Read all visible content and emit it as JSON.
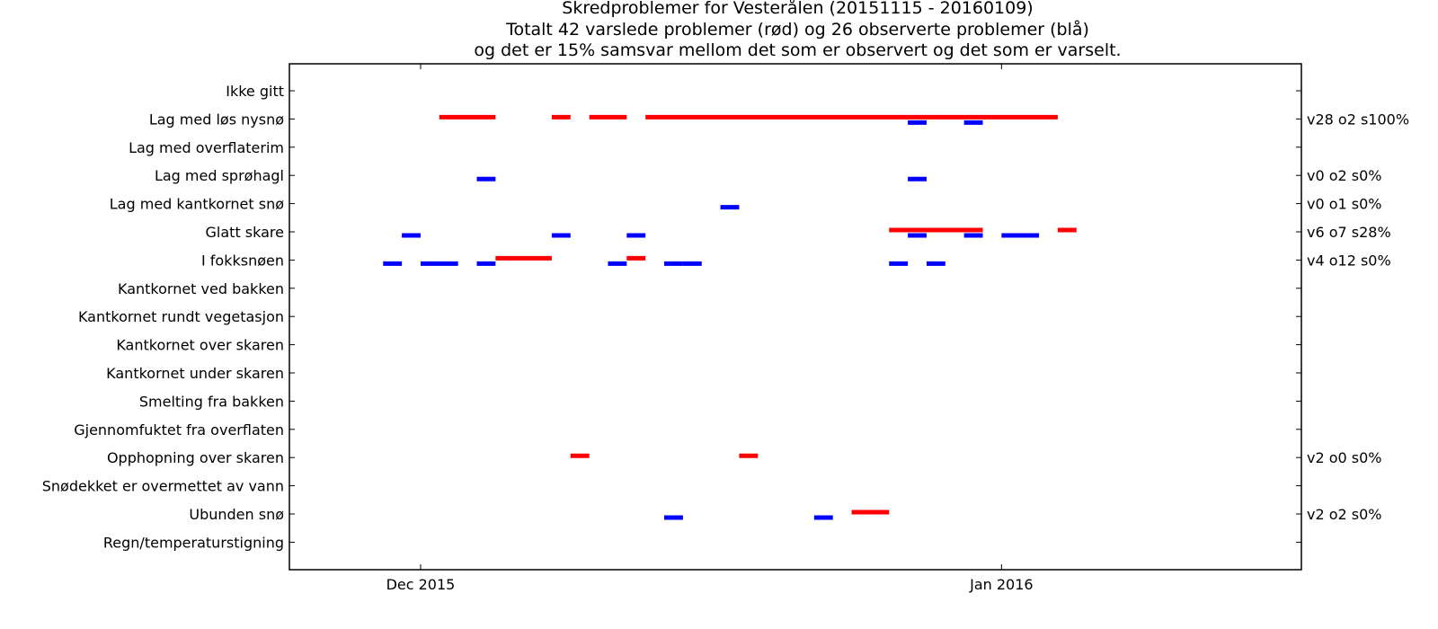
{
  "chart_data": {
    "type": "timeline",
    "title_lines": [
      "Skredproblemer for Vesterålen (20151115 - 20160109)",
      "Totalt 42 varslede problemer (rød) og 26 observerte problemer (blå)",
      "og det er 15% samsvar mellom det som er observert og det som er varselt."
    ],
    "x_range": [
      "2015-11-24",
      "2016-01-17"
    ],
    "x_ticks": [
      {
        "date": "2015-12-01",
        "label": "Dec 2015"
      },
      {
        "date": "2016-01-01",
        "label": "Jan 2016"
      }
    ],
    "categories": [
      "Ikke gitt",
      "Lag med løs nysnø",
      "Lag med overflaterim",
      "Lag med sprøhagl",
      "Lag med kantkornet snø",
      "Glatt skare",
      "I fokksnøen",
      "Kantkornet ved bakken",
      "Kantkornet rundt vegetasjon",
      "Kantkornet over skaren",
      "Kantkornet under skaren",
      "Smelting fra bakken",
      "Gjennomfuktet fra overflaten",
      "Opphopning over skaren",
      "Snødekket er overmettet av vann",
      "Ubunden snø",
      "Regn/temperaturstigning"
    ],
    "right_labels": [
      "",
      "v28 o2 s100%",
      "",
      "v0 o2 s0%",
      "v0 o1 s0%",
      "v6 o7 s28%",
      "v4 o12 s0%",
      "",
      "",
      "",
      "",
      "",
      "",
      "v2 o0 s0%",
      "",
      "v2 o2 s0%",
      ""
    ],
    "series": [
      {
        "color": "#ff0000",
        "segments": [
          {
            "row": 1,
            "start": "2015-12-02",
            "end": "2015-12-05"
          },
          {
            "row": 1,
            "start": "2015-12-08",
            "end": "2015-12-09"
          },
          {
            "row": 1,
            "start": "2015-12-10",
            "end": "2015-12-12"
          },
          {
            "row": 1,
            "start": "2015-12-13",
            "end": "2016-01-04"
          },
          {
            "row": 5,
            "start": "2015-12-26",
            "end": "2015-12-31"
          },
          {
            "row": 5,
            "start": "2016-01-04",
            "end": "2016-01-05"
          },
          {
            "row": 6,
            "start": "2015-12-05",
            "end": "2015-12-08"
          },
          {
            "row": 6,
            "start": "2015-12-12",
            "end": "2015-12-13"
          },
          {
            "row": 13,
            "start": "2015-12-09",
            "end": "2015-12-10"
          },
          {
            "row": 13,
            "start": "2015-12-18",
            "end": "2015-12-19"
          },
          {
            "row": 15,
            "start": "2015-12-24",
            "end": "2015-12-26"
          }
        ]
      },
      {
        "color": "#0000ff",
        "segments": [
          {
            "row": 1,
            "start": "2015-12-27",
            "end": "2015-12-28"
          },
          {
            "row": 1,
            "start": "2015-12-30",
            "end": "2015-12-31"
          },
          {
            "row": 3,
            "start": "2015-12-04",
            "end": "2015-12-05"
          },
          {
            "row": 3,
            "start": "2015-12-27",
            "end": "2015-12-28"
          },
          {
            "row": 4,
            "start": "2015-12-17",
            "end": "2015-12-18"
          },
          {
            "row": 5,
            "start": "2015-11-30",
            "end": "2015-12-01"
          },
          {
            "row": 5,
            "start": "2015-12-08",
            "end": "2015-12-09"
          },
          {
            "row": 5,
            "start": "2015-12-12",
            "end": "2015-12-13"
          },
          {
            "row": 5,
            "start": "2015-12-27",
            "end": "2015-12-28"
          },
          {
            "row": 5,
            "start": "2015-12-30",
            "end": "2015-12-31"
          },
          {
            "row": 5,
            "start": "2016-01-01",
            "end": "2016-01-03"
          },
          {
            "row": 6,
            "start": "2015-11-29",
            "end": "2015-11-30"
          },
          {
            "row": 6,
            "start": "2015-12-01",
            "end": "2015-12-03"
          },
          {
            "row": 6,
            "start": "2015-12-04",
            "end": "2015-12-05"
          },
          {
            "row": 6,
            "start": "2015-12-11",
            "end": "2015-12-12"
          },
          {
            "row": 6,
            "start": "2015-12-14",
            "end": "2015-12-15"
          },
          {
            "row": 6,
            "start": "2015-12-15",
            "end": "2015-12-16"
          },
          {
            "row": 6,
            "start": "2015-12-26",
            "end": "2015-12-27"
          },
          {
            "row": 6,
            "start": "2015-12-28",
            "end": "2015-12-29"
          },
          {
            "row": 15,
            "start": "2015-12-14",
            "end": "2015-12-15"
          },
          {
            "row": 15,
            "start": "2015-12-22",
            "end": "2015-12-23"
          }
        ]
      }
    ],
    "grid": false,
    "legend": "none"
  }
}
